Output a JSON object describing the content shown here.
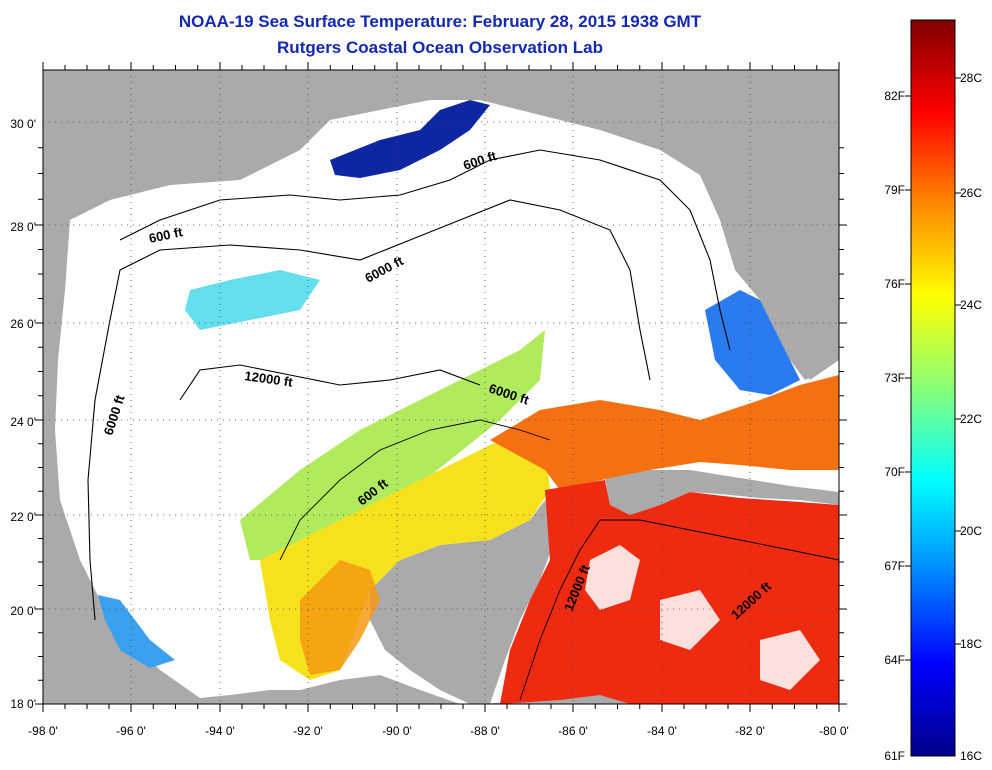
{
  "title": "NOAA-19 Sea Surface Temperature:  February 28, 2015 1938 GMT",
  "subtitle": "Rutgers Coastal Ocean Observation Lab",
  "map": {
    "lon_ticks": [
      "-98 0'",
      "-96 0'",
      "-94 0'",
      "-92 0'",
      "-90 0'",
      "-88 0'",
      "-86 0'",
      "-84 0'",
      "-82 0'",
      "-80 0'"
    ],
    "lat_ticks": [
      "18 0'",
      "20 0'",
      "22 0'",
      "24 0'",
      "26 0'",
      "28 0'",
      "30 0'"
    ],
    "contour_labels": [
      "600 ft",
      "600 ft",
      "6000 ft",
      "6000 ft",
      "12000 ft",
      "6000 ft",
      "600 ft",
      "12000 ft",
      "12000 ft"
    ],
    "colors": {
      "land": "#aaaaaa",
      "cloud": "#ffffff",
      "contour": "#000000"
    }
  },
  "colorbar": {
    "fahrenheit": [
      "82F",
      "79F",
      "76F",
      "73F",
      "70F",
      "67F",
      "64F",
      "61F"
    ],
    "celsius": [
      "28C",
      "26C",
      "24C",
      "22C",
      "20C",
      "18C",
      "16C"
    ],
    "stops": [
      "#00008c",
      "#0000ff",
      "#0088ff",
      "#00ffff",
      "#88ff77",
      "#ffff00",
      "#ff8800",
      "#ff0000",
      "#800000"
    ]
  }
}
